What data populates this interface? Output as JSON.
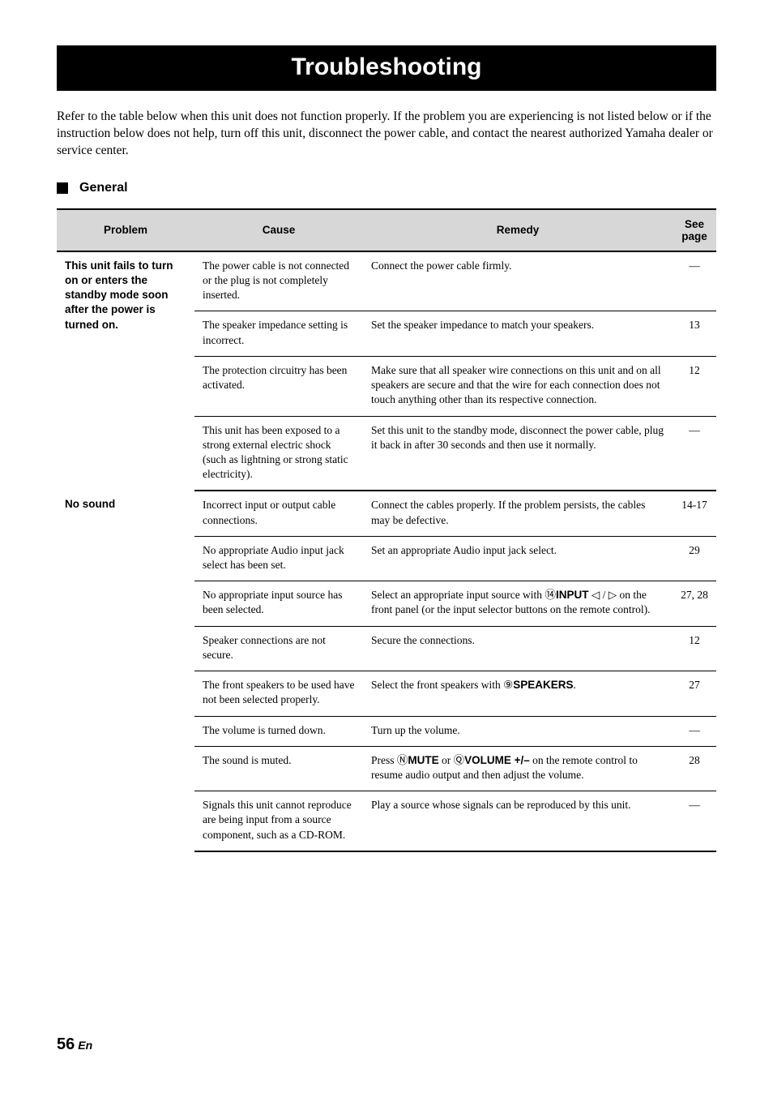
{
  "title": "Troubleshooting",
  "intro": "Refer to the table below when this unit does not function properly. If the problem you are experiencing is not listed below or if the instruction below does not help, turn off this unit, disconnect the power cable, and contact the nearest authorized Yamaha dealer or service center.",
  "section_label": "General",
  "headers": {
    "problem": "Problem",
    "cause": "Cause",
    "remedy": "Remedy",
    "seepage": "See page"
  },
  "problems": {
    "p1_label": "This unit fails to turn on or enters the standby mode soon after the power is turned on.",
    "p2_label": "No sound"
  },
  "rows": {
    "r1": {
      "cause": "The power cable is not connected or the plug is not completely inserted.",
      "remedy": "Connect the power cable firmly.",
      "page": "—"
    },
    "r2": {
      "cause": "The speaker impedance setting is incorrect.",
      "remedy": "Set the speaker impedance to match your speakers.",
      "page": "13"
    },
    "r3": {
      "cause": "The protection circuitry has been activated.",
      "remedy": "Make sure that all speaker wire connections on this unit and on all speakers are secure and that the wire for each connection does not touch anything other than its respective connection.",
      "page": "12"
    },
    "r4": {
      "cause": "This unit has been exposed to a strong external electric shock (such as lightning or strong static electricity).",
      "remedy": "Set this unit to the standby mode, disconnect the power cable, plug it back in after 30 seconds and then use it normally.",
      "page": "—"
    },
    "r5": {
      "cause": "Incorrect input or output cable connections.",
      "remedy": "Connect the cables properly. If the problem persists, the cables may be defective.",
      "page": "14-17"
    },
    "r6": {
      "cause": "No appropriate Audio input jack select has been set.",
      "remedy": "Set an appropriate Audio input jack select.",
      "page": "29"
    },
    "r7": {
      "cause": "No appropriate input source has been selected.",
      "remedy_pre": "Select an appropriate input source with ",
      "remedy_circ": "⑭",
      "remedy_bold1": "INPUT",
      "remedy_mid": " ",
      "remedy_bold2_pre": "◁ / ▷",
      "remedy_post": " on the front panel (or the input selector buttons on the remote control).",
      "page": "27, 28"
    },
    "r8": {
      "cause": "Speaker connections are not secure.",
      "remedy": "Secure the connections.",
      "page": "12"
    },
    "r9": {
      "cause": "The front speakers to be used have not been selected properly.",
      "remedy_pre": "Select the front speakers with ",
      "remedy_circ": "⑨",
      "remedy_bold": "SPEAKERS",
      "remedy_post": ".",
      "page": "27"
    },
    "r10": {
      "cause": "The volume is turned down.",
      "remedy": "Turn up the volume.",
      "page": "—"
    },
    "r11": {
      "cause": "The sound is muted.",
      "remedy_pre": "Press ",
      "remedy_circ1": "Ⓝ",
      "remedy_bold1": "MUTE",
      "remedy_or": " or ",
      "remedy_circ2": "Ⓠ",
      "remedy_bold2": "VOLUME +/–",
      "remedy_post": " on the remote control to resume audio output and then adjust the volume.",
      "page": "28"
    },
    "r12": {
      "cause": "Signals this unit cannot reproduce are being input from a source component, such as a CD-ROM.",
      "remedy": "Play a source whose signals can be reproduced by this unit.",
      "page": "—"
    }
  },
  "page_number": "56",
  "page_lang": "En",
  "style": {
    "background": "#ffffff",
    "header_bg": "#d7d7d7",
    "rule_thick": "2px",
    "rule_thin": "1px",
    "title_fontsize": 30,
    "body_fontsize": 15.5,
    "table_fontsize": 13.5
  }
}
